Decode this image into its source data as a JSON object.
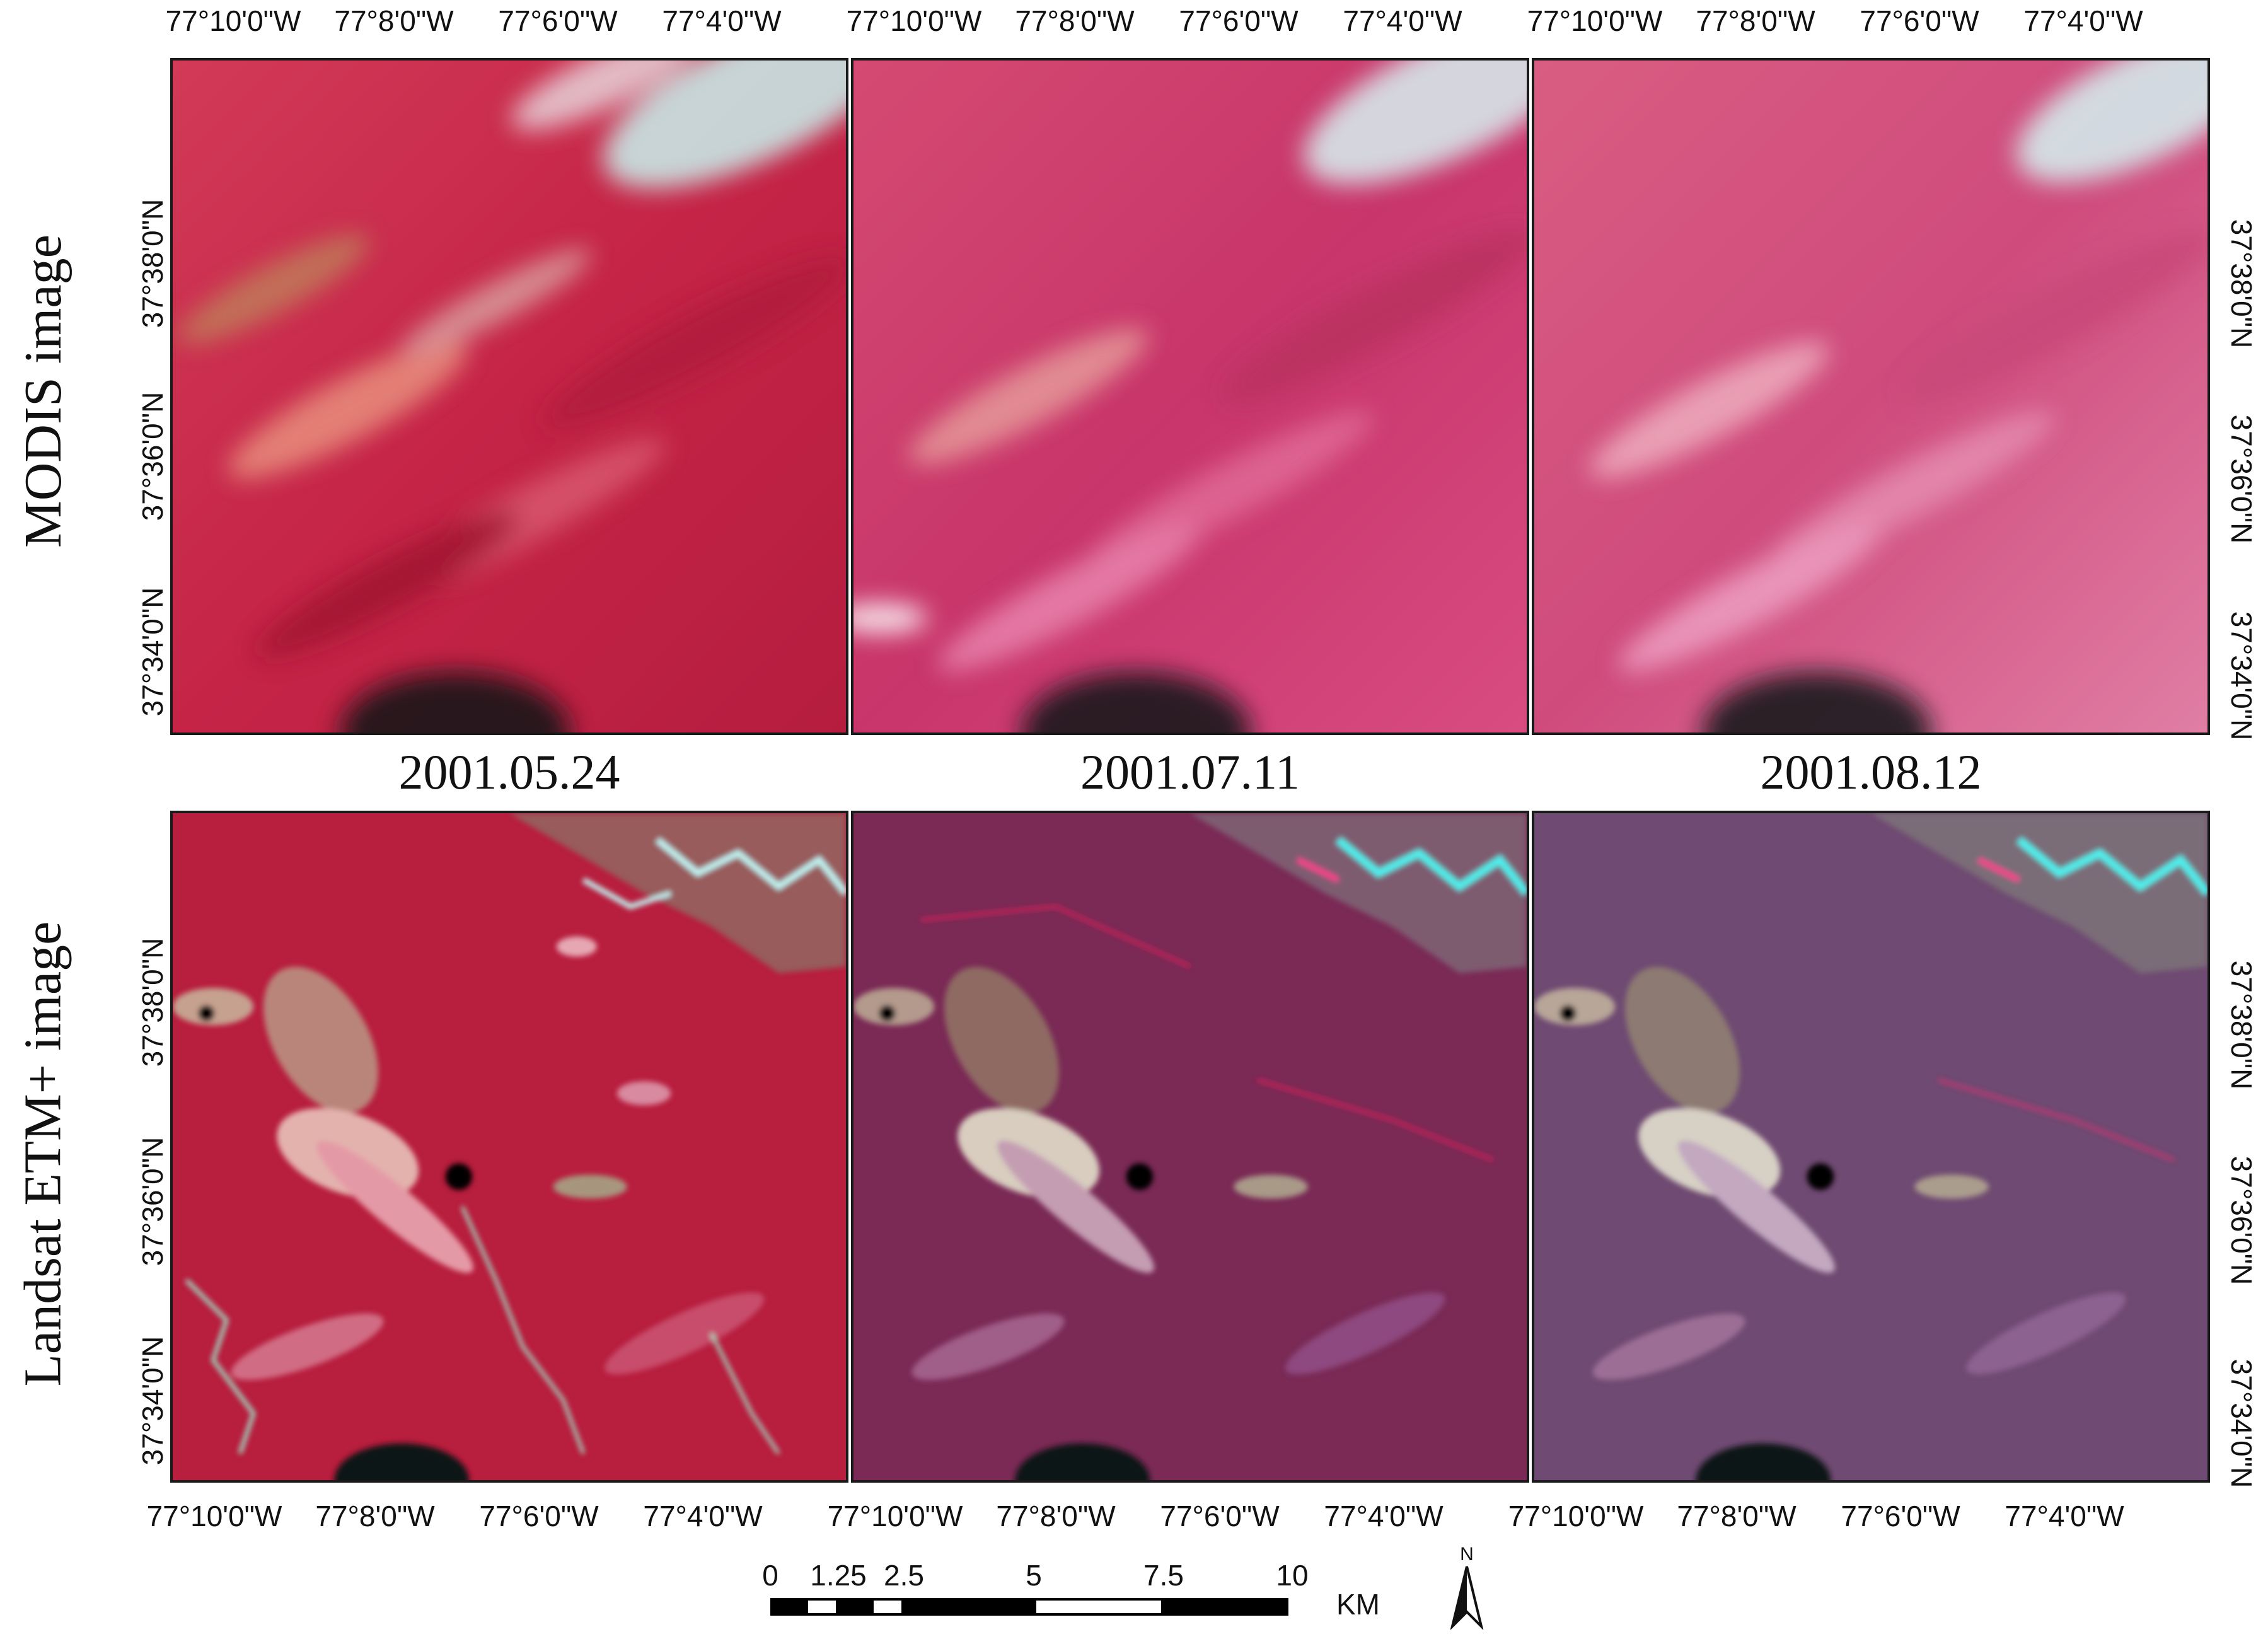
{
  "figure": {
    "row_labels": [
      "MODIS image",
      "Landsat ETM+ image"
    ],
    "dates": [
      "2001.05.24",
      "2001.07.11",
      "2001.08.12"
    ],
    "lon_ticks": [
      "77°10'0\"W",
      "77°8'0\"W",
      "77°6'0\"W",
      "77°4'0\"W"
    ],
    "lat_ticks": [
      "37°38'0\"N",
      "37°36'0\"N",
      "37°34'0\"N"
    ],
    "scale_bar": {
      "labels": [
        "0",
        "1.25",
        "2.5",
        "5",
        "7.5",
        "10"
      ],
      "unit": "KM"
    },
    "north_arrow": {
      "label": "N",
      "icon": "north-arrow-icon"
    },
    "colors": {
      "modis_tone": "#c8264a",
      "landsat_tone_1": "#b81e3e",
      "landsat_tone_2": "#7a2a55",
      "landsat_tone_3": "#6f4a72",
      "cloud_cyan": "#bff5f2",
      "water_dark": "#0b1818"
    }
  }
}
